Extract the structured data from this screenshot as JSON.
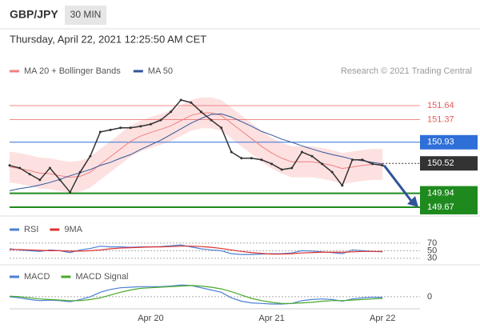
{
  "header": {
    "symbol": "GBP/JPY",
    "timeframe": "30 MIN",
    "datetime": "Thursday, April 22, 2021 12:25:50 AM CET",
    "credit": "Research © 2021 Trading Central"
  },
  "chart_data": [
    {
      "type": "line",
      "categories": [
        null,
        null,
        null,
        null,
        null,
        null,
        null,
        null,
        null,
        null,
        null,
        null,
        null,
        null,
        "Apr 20",
        null,
        null,
        null,
        null,
        null,
        null,
        null,
        null,
        null,
        null,
        null,
        "Apr 21",
        null,
        null,
        null,
        null,
        null,
        null,
        null,
        null,
        null,
        null,
        "Apr 22"
      ],
      "price": {
        "color": "#333333",
        "values": [
          150.48,
          150.43,
          150.31,
          150.2,
          150.43,
          150.2,
          149.96,
          150.35,
          150.66,
          151.13,
          151.17,
          151.21,
          151.21,
          151.24,
          151.28,
          151.36,
          151.52,
          151.75,
          151.7,
          151.52,
          151.36,
          151.21,
          150.74,
          150.62,
          150.62,
          150.59,
          150.51,
          150.4,
          150.43,
          150.74,
          150.66,
          150.51,
          150.35,
          150.09,
          150.59,
          150.59,
          150.51,
          150.48
        ]
      },
      "bands": {
        "color": "#fcd9d9",
        "upper": [
          150.75,
          150.72,
          150.68,
          150.63,
          150.62,
          150.58,
          150.55,
          150.57,
          150.65,
          150.8,
          150.95,
          151.1,
          151.25,
          151.35,
          151.42,
          151.48,
          151.55,
          151.65,
          151.75,
          151.8,
          151.8,
          151.75,
          151.6,
          151.45,
          151.3,
          151.15,
          151.02,
          150.92,
          150.85,
          150.85,
          150.85,
          150.82,
          150.78,
          150.72,
          150.75,
          150.78,
          150.8,
          150.8
        ],
        "lower": [
          150.15,
          150.12,
          150.08,
          150.03,
          150.02,
          149.98,
          149.95,
          149.97,
          150.05,
          150.2,
          150.35,
          150.5,
          150.65,
          150.75,
          150.82,
          150.88,
          150.95,
          151.05,
          151.15,
          151.2,
          151.2,
          151.15,
          151.0,
          150.85,
          150.7,
          150.55,
          150.42,
          150.32,
          150.25,
          150.25,
          150.25,
          150.22,
          150.18,
          150.12,
          150.15,
          150.18,
          150.2,
          150.2
        ]
      },
      "series": [
        {
          "name": "MA 20 + Bollinger Bands",
          "color": "#f08080",
          "values": [
            150.45,
            150.42,
            150.38,
            150.33,
            150.32,
            150.28,
            150.25,
            150.27,
            150.35,
            150.5,
            150.65,
            150.8,
            150.95,
            151.05,
            151.12,
            151.18,
            151.25,
            151.35,
            151.45,
            151.5,
            151.5,
            151.45,
            151.3,
            151.15,
            151.0,
            150.85,
            150.72,
            150.62,
            150.55,
            150.55,
            150.55,
            150.52,
            150.48,
            150.42,
            150.45,
            150.48,
            150.5,
            150.5
          ]
        },
        {
          "name": "MA 50",
          "color": "#2f5597",
          "values": [
            149.99,
            150.03,
            150.06,
            150.1,
            150.15,
            150.21,
            150.28,
            150.34,
            150.4,
            150.48,
            150.54,
            150.62,
            150.69,
            150.79,
            150.88,
            150.97,
            151.08,
            151.19,
            151.3,
            151.39,
            151.47,
            151.48,
            151.42,
            151.33,
            151.24,
            151.14,
            151.07,
            150.99,
            150.93,
            150.86,
            150.8,
            150.74,
            150.69,
            150.65,
            150.6,
            150.57,
            150.54,
            150.51
          ]
        }
      ],
      "levels": [
        {
          "value": 151.64,
          "color": "#e85a5a"
        },
        {
          "value": 151.37,
          "color": "#e85a5a"
        },
        {
          "value": 150.93,
          "color": "#2e6fd8"
        },
        {
          "value": 150.52,
          "color": "#333333"
        },
        {
          "value": 149.94,
          "color": "#1e8a1e"
        },
        {
          "value": 149.67,
          "color": "#1e8a1e"
        }
      ],
      "ylim": [
        149.53,
        152.06
      ]
    },
    {
      "type": "line",
      "series": [
        {
          "name": "RSI",
          "color": "#4a7fd4",
          "values": [
            55,
            52,
            50,
            48,
            52,
            50,
            45,
            52,
            56,
            62,
            60,
            60,
            59,
            60,
            60,
            61,
            63,
            65,
            60,
            55,
            52,
            50,
            42,
            40,
            40,
            41,
            42,
            42,
            44,
            50,
            49,
            47,
            45,
            42,
            52,
            50,
            48,
            47
          ]
        },
        {
          "name": "9MA",
          "color": "#e03030",
          "values": [
            53,
            53,
            52,
            51,
            50,
            50,
            49,
            49,
            50,
            52,
            55,
            57,
            58,
            59,
            60,
            60,
            61,
            62,
            62,
            61,
            59,
            56,
            52,
            48,
            45,
            43,
            41,
            41,
            42,
            44,
            45,
            46,
            46,
            46,
            47,
            48,
            48,
            48
          ]
        }
      ],
      "ylim": [
        0,
        100
      ],
      "yticks": [
        30,
        50,
        70
      ]
    },
    {
      "type": "line",
      "series": [
        {
          "name": "MACD",
          "color": "#4a7fd4",
          "values": [
            0.0,
            -0.02,
            -0.05,
            -0.07,
            -0.06,
            -0.07,
            -0.09,
            -0.05,
            0.0,
            0.08,
            0.13,
            0.16,
            0.17,
            0.18,
            0.18,
            0.18,
            0.19,
            0.21,
            0.2,
            0.16,
            0.12,
            0.08,
            -0.02,
            -0.08,
            -0.11,
            -0.12,
            -0.13,
            -0.13,
            -0.12,
            -0.07,
            -0.05,
            -0.04,
            -0.05,
            -0.08,
            -0.04,
            -0.02,
            -0.01,
            -0.01
          ]
        },
        {
          "name": "MACD Signal",
          "color": "#4aa82a",
          "values": [
            0.01,
            0.0,
            -0.02,
            -0.04,
            -0.05,
            -0.06,
            -0.07,
            -0.07,
            -0.05,
            -0.02,
            0.03,
            0.08,
            0.12,
            0.15,
            0.16,
            0.17,
            0.18,
            0.19,
            0.2,
            0.19,
            0.17,
            0.14,
            0.09,
            0.03,
            -0.03,
            -0.07,
            -0.1,
            -0.12,
            -0.12,
            -0.11,
            -0.1,
            -0.08,
            -0.07,
            -0.07,
            -0.06,
            -0.05,
            -0.04,
            -0.03
          ]
        }
      ],
      "ylim": [
        -0.23,
        0.37
      ],
      "yticks": [
        0
      ]
    }
  ]
}
